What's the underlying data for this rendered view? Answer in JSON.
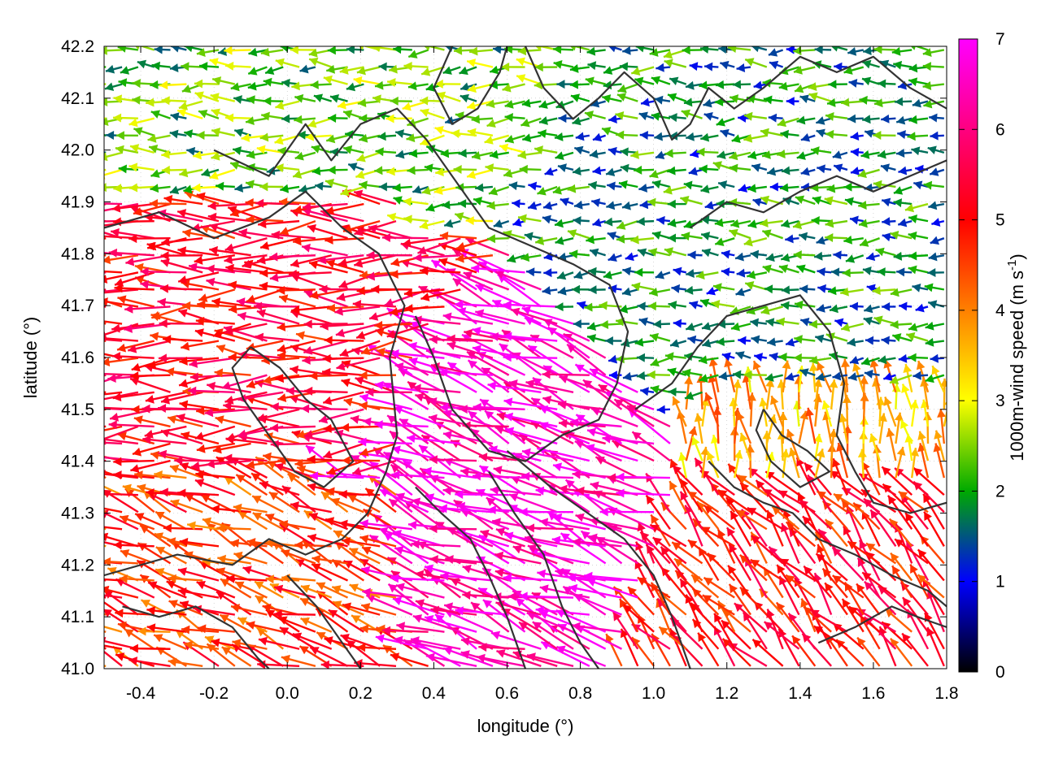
{
  "chart_data": {
    "type": "vector-field",
    "xlabel": "longitude (°)",
    "ylabel": "latitude (°)",
    "xlim": [
      -0.5,
      1.8
    ],
    "ylim": [
      41.0,
      42.2
    ],
    "xticks": [
      "-0.4",
      "-0.2",
      "0.0",
      "0.2",
      "0.4",
      "0.6",
      "0.8",
      "1.0",
      "1.2",
      "1.4",
      "1.6",
      "1.8"
    ],
    "yticks": [
      "41.0",
      "41.1",
      "41.2",
      "41.3",
      "41.4",
      "41.5",
      "41.6",
      "41.7",
      "41.8",
      "41.9",
      "42.0",
      "42.1",
      "42.2"
    ],
    "grid": true,
    "colorbar": {
      "label": "1000m-wind speed (m s",
      "label_superscript": "-1",
      "label_close": ")",
      "range": [
        0,
        7
      ],
      "ticks": [
        "0",
        "1",
        "2",
        "3",
        "4",
        "5",
        "6",
        "7"
      ],
      "colormap": [
        "#000000",
        "#0000ff",
        "#00aa00",
        "#ffff00",
        "#ff0000",
        "#ff00ff"
      ]
    },
    "wind_regions": [
      {
        "lon": [
          -0.5,
          0.3
        ],
        "lat": [
          41.4,
          41.9
        ],
        "speed": 5.2,
        "dir_deg": 180
      },
      {
        "lon": [
          0.3,
          0.8
        ],
        "lat": [
          41.15,
          41.55
        ],
        "speed": 6.6,
        "dir_deg": 160
      },
      {
        "lon": [
          1.2,
          1.8
        ],
        "lat": [
          41.0,
          41.35
        ],
        "speed": 5.0,
        "dir_deg": 130
      },
      {
        "lon": [
          0.9,
          1.8
        ],
        "lat": [
          41.55,
          42.0
        ],
        "speed": 1.8,
        "dir_deg": 180
      },
      {
        "lon": [
          -0.5,
          0.3
        ],
        "lat": [
          41.9,
          42.2
        ],
        "speed": 2.3,
        "dir_deg": 180
      },
      {
        "lon": [
          -0.5,
          0.3
        ],
        "lat": [
          41.0,
          41.35
        ],
        "speed": 4.6,
        "dir_deg": 160
      },
      {
        "lon": [
          1.35,
          1.8
        ],
        "lat": [
          41.35,
          41.55
        ],
        "speed": 3.7,
        "dir_deg": 95
      }
    ],
    "contours": [
      [
        [
          -0.5,
          41.85
        ],
        [
          -0.35,
          41.88
        ],
        [
          -0.2,
          41.83
        ],
        [
          -0.05,
          41.87
        ],
        [
          0.05,
          41.92
        ],
        [
          0.15,
          41.85
        ],
        [
          0.25,
          41.8
        ],
        [
          0.32,
          41.7
        ],
        [
          0.28,
          41.6
        ],
        [
          0.3,
          41.45
        ],
        [
          0.27,
          41.38
        ],
        [
          0.22,
          41.3
        ],
        [
          0.15,
          41.25
        ],
        [
          0.05,
          41.22
        ],
        [
          -0.05,
          41.25
        ],
        [
          -0.15,
          41.2
        ],
        [
          -0.3,
          41.22
        ],
        [
          -0.5,
          41.18
        ]
      ],
      [
        [
          -0.2,
          42.0
        ],
        [
          -0.05,
          41.95
        ],
        [
          0.05,
          42.05
        ],
        [
          0.12,
          41.98
        ],
        [
          0.2,
          42.05
        ],
        [
          0.3,
          42.08
        ],
        [
          0.38,
          42.02
        ],
        [
          0.45,
          41.95
        ],
        [
          0.55,
          41.85
        ],
        [
          0.65,
          41.82
        ],
        [
          0.78,
          41.78
        ],
        [
          0.88,
          41.74
        ],
        [
          0.93,
          41.65
        ],
        [
          0.9,
          41.55
        ],
        [
          0.85,
          41.48
        ],
        [
          0.75,
          41.45
        ],
        [
          0.65,
          41.4
        ],
        [
          0.55,
          41.42
        ],
        [
          0.45,
          41.5
        ],
        [
          0.4,
          41.6
        ],
        [
          0.35,
          41.68
        ]
      ],
      [
        [
          0.35,
          41.35
        ],
        [
          0.42,
          41.3
        ],
        [
          0.5,
          41.25
        ],
        [
          0.55,
          41.18
        ],
        [
          0.6,
          41.1
        ],
        [
          0.65,
          41.0
        ]
      ],
      [
        [
          0.55,
          41.38
        ],
        [
          0.62,
          41.3
        ],
        [
          0.7,
          41.22
        ],
        [
          0.75,
          41.12
        ],
        [
          0.8,
          41.05
        ],
        [
          0.85,
          41.0
        ]
      ],
      [
        [
          0.6,
          41.42
        ],
        [
          0.72,
          41.35
        ],
        [
          0.82,
          41.3
        ],
        [
          0.92,
          41.25
        ],
        [
          1.0,
          41.18
        ],
        [
          1.05,
          41.1
        ],
        [
          1.1,
          41.0
        ]
      ],
      [
        [
          0.95,
          41.5
        ],
        [
          1.05,
          41.55
        ],
        [
          1.12,
          41.62
        ],
        [
          1.2,
          41.68
        ],
        [
          1.3,
          41.7
        ],
        [
          1.4,
          41.72
        ],
        [
          1.48,
          41.65
        ],
        [
          1.52,
          41.55
        ],
        [
          1.5,
          41.45
        ],
        [
          1.55,
          41.38
        ],
        [
          1.6,
          41.32
        ],
        [
          1.7,
          41.3
        ],
        [
          1.8,
          41.32
        ]
      ],
      [
        [
          1.15,
          41.4
        ],
        [
          1.22,
          41.35
        ],
        [
          1.3,
          41.32
        ],
        [
          1.38,
          41.3
        ],
        [
          1.45,
          41.25
        ],
        [
          1.55,
          41.22
        ],
        [
          1.65,
          41.18
        ],
        [
          1.75,
          41.15
        ],
        [
          1.8,
          41.12
        ]
      ],
      [
        [
          1.45,
          41.05
        ],
        [
          1.55,
          41.08
        ],
        [
          1.65,
          41.12
        ],
        [
          1.72,
          41.1
        ],
        [
          1.8,
          41.08
        ]
      ],
      [
        [
          0.65,
          42.2
        ],
        [
          0.7,
          42.12
        ],
        [
          0.78,
          42.06
        ],
        [
          0.85,
          42.1
        ],
        [
          0.92,
          42.15
        ],
        [
          1.0,
          42.1
        ],
        [
          1.05,
          42.02
        ],
        [
          1.1,
          42.05
        ],
        [
          1.15,
          42.12
        ],
        [
          1.22,
          42.08
        ],
        [
          1.3,
          42.12
        ],
        [
          1.4,
          42.18
        ],
        [
          1.5,
          42.15
        ],
        [
          1.6,
          42.18
        ],
        [
          1.7,
          42.12
        ],
        [
          1.8,
          42.08
        ]
      ],
      [
        [
          1.1,
          41.85
        ],
        [
          1.2,
          41.9
        ],
        [
          1.3,
          41.88
        ],
        [
          1.4,
          41.92
        ],
        [
          1.5,
          41.95
        ],
        [
          1.6,
          41.92
        ],
        [
          1.7,
          41.95
        ],
        [
          1.8,
          41.98
        ]
      ],
      [
        [
          -0.1,
          41.62
        ],
        [
          -0.02,
          41.58
        ],
        [
          0.05,
          41.52
        ],
        [
          0.12,
          41.48
        ],
        [
          0.18,
          41.4
        ],
        [
          0.1,
          41.35
        ],
        [
          0.02,
          41.38
        ],
        [
          -0.05,
          41.45
        ],
        [
          -0.12,
          41.52
        ],
        [
          -0.15,
          41.58
        ],
        [
          -0.1,
          41.62
        ]
      ],
      [
        [
          0.0,
          41.18
        ],
        [
          0.08,
          41.12
        ],
        [
          0.15,
          41.05
        ],
        [
          0.2,
          41.0
        ]
      ],
      [
        [
          -0.45,
          41.12
        ],
        [
          -0.35,
          41.1
        ],
        [
          -0.25,
          41.12
        ],
        [
          -0.15,
          41.08
        ],
        [
          -0.08,
          41.02
        ],
        [
          -0.05,
          41.0
        ]
      ],
      [
        [
          0.45,
          42.2
        ],
        [
          0.4,
          42.12
        ],
        [
          0.45,
          42.05
        ],
        [
          0.52,
          42.08
        ],
        [
          0.58,
          42.15
        ],
        [
          0.6,
          42.2
        ]
      ],
      [
        [
          1.3,
          41.5
        ],
        [
          1.35,
          41.45
        ],
        [
          1.42,
          41.42
        ],
        [
          1.48,
          41.38
        ],
        [
          1.4,
          41.35
        ],
        [
          1.32,
          41.4
        ],
        [
          1.28,
          41.46
        ],
        [
          1.3,
          41.5
        ]
      ]
    ]
  }
}
